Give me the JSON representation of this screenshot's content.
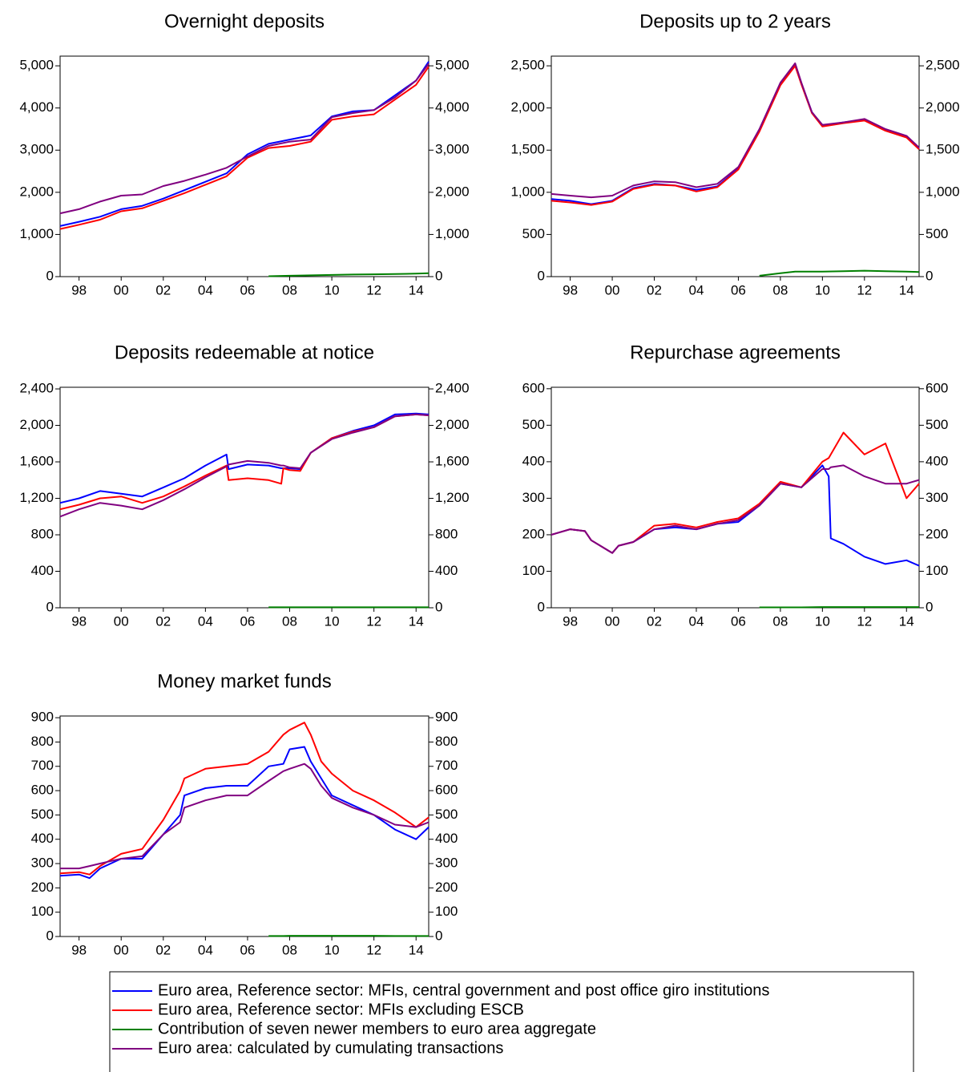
{
  "chart_data": [
    {
      "type": "line",
      "title": "Overnight deposits",
      "x": [
        1997.1,
        1998,
        1999,
        2000,
        2001,
        2002,
        2003,
        2004,
        2005,
        2006,
        2007,
        2008,
        2009,
        2010,
        2011,
        2012,
        2013,
        2014,
        2014.6
      ],
      "series": [
        {
          "name": "Euro area, Reference sector: MFIs, central government and post office giro institutions",
          "color": "#0000ff",
          "values": [
            1200,
            1300,
            1420,
            1600,
            1680,
            1850,
            2050,
            2250,
            2450,
            2900,
            3150,
            3250,
            3350,
            3800,
            3920,
            3950,
            4300,
            4650,
            5100
          ]
        },
        {
          "name": "Euro area, Reference sector: MFIs excluding ESCB",
          "color": "#ff0000",
          "values": [
            1130,
            1230,
            1350,
            1550,
            1620,
            1800,
            1980,
            2180,
            2380,
            2820,
            3050,
            3100,
            3200,
            3720,
            3800,
            3850,
            4200,
            4550,
            4980
          ]
        },
        {
          "name": "Contribution of seven newer members to euro area aggregate",
          "color": "#008000",
          "values": [
            null,
            null,
            null,
            null,
            null,
            null,
            null,
            null,
            null,
            null,
            10,
            20,
            30,
            40,
            50,
            55,
            60,
            70,
            80
          ]
        },
        {
          "name": "Euro area: calculated by cumulating transactions",
          "color": "#800080",
          "values": [
            1500,
            1600,
            1780,
            1920,
            1950,
            2150,
            2270,
            2420,
            2580,
            2850,
            3100,
            3200,
            3250,
            3780,
            3880,
            3950,
            4250,
            4650,
            5050
          ]
        }
      ],
      "xlim": [
        1997.1,
        2014.6
      ],
      "xticks": [
        {
          "value": 1998,
          "label": "98"
        },
        {
          "value": 2000,
          "label": "00"
        },
        {
          "value": 2002,
          "label": "02"
        },
        {
          "value": 2004,
          "label": "04"
        },
        {
          "value": 2006,
          "label": "06"
        },
        {
          "value": 2008,
          "label": "08"
        },
        {
          "value": 2010,
          "label": "10"
        },
        {
          "value": 2012,
          "label": "12"
        },
        {
          "value": 2014,
          "label": "14"
        }
      ],
      "ylim": [
        0,
        5230
      ],
      "yticks": [
        0,
        {
          "value": 1000,
          "label": "1,000"
        },
        {
          "value": 2000,
          "label": "2,000"
        },
        {
          "value": 3000,
          "label": "3,000"
        },
        {
          "value": 4000,
          "label": "4,000"
        },
        {
          "value": 5000,
          "label": "5,000"
        }
      ]
    },
    {
      "type": "line",
      "title": "Deposits up to 2 years",
      "x": [
        1997.1,
        1998,
        1999,
        2000,
        2001,
        2002,
        2003,
        2004,
        2005,
        2006,
        2007,
        2008,
        2008.7,
        2009,
        2009.5,
        2010,
        2011,
        2012,
        2013,
        2014,
        2014.6
      ],
      "series": [
        {
          "name": "Euro area, Reference sector: MFIs, central government and post office giro institutions",
          "color": "#0000ff",
          "values": [
            920,
            900,
            860,
            900,
            1050,
            1100,
            1080,
            1030,
            1070,
            1280,
            1730,
            2280,
            2510,
            2290,
            1950,
            1790,
            1830,
            1860,
            1740,
            1660,
            1520
          ]
        },
        {
          "name": "Euro area, Reference sector: MFIs excluding ESCB",
          "color": "#ff0000",
          "values": [
            900,
            880,
            850,
            890,
            1040,
            1090,
            1080,
            1010,
            1060,
            1270,
            1720,
            2270,
            2500,
            2280,
            1940,
            1780,
            1820,
            1850,
            1730,
            1650,
            1510
          ]
        },
        {
          "name": "Contribution of seven newer members to euro area aggregate",
          "color": "#008000",
          "values": [
            null,
            null,
            null,
            null,
            null,
            null,
            null,
            null,
            null,
            null,
            10,
            40,
            60,
            60,
            60,
            60,
            65,
            70,
            65,
            60,
            55
          ]
        },
        {
          "name": "Euro area: calculated by cumulating transactions",
          "color": "#800080",
          "values": [
            980,
            960,
            940,
            960,
            1080,
            1130,
            1120,
            1060,
            1100,
            1300,
            1750,
            2300,
            2530,
            2300,
            1950,
            1800,
            1830,
            1870,
            1750,
            1670,
            1530
          ]
        }
      ],
      "xlim": [
        1997.1,
        2014.6
      ],
      "xticks": [
        {
          "value": 1998,
          "label": "98"
        },
        {
          "value": 2000,
          "label": "00"
        },
        {
          "value": 2002,
          "label": "02"
        },
        {
          "value": 2004,
          "label": "04"
        },
        {
          "value": 2006,
          "label": "06"
        },
        {
          "value": 2008,
          "label": "08"
        },
        {
          "value": 2010,
          "label": "10"
        },
        {
          "value": 2012,
          "label": "12"
        },
        {
          "value": 2014,
          "label": "14"
        }
      ],
      "ylim": [
        0,
        2615
      ],
      "yticks": [
        0,
        500,
        {
          "value": 1000,
          "label": "1,000"
        },
        {
          "value": 1500,
          "label": "1,500"
        },
        {
          "value": 2000,
          "label": "2,000"
        },
        {
          "value": 2500,
          "label": "2,500"
        }
      ]
    },
    {
      "type": "line",
      "title": "Deposits redeemable at notice",
      "x": [
        1997.1,
        1998,
        1999,
        2000,
        2001,
        2002,
        2003,
        2004,
        2005,
        2005.1,
        2006,
        2007,
        2007.6,
        2007.7,
        2008,
        2008.5,
        2009,
        2010,
        2011,
        2012,
        2013,
        2014,
        2014.6
      ],
      "series": [
        {
          "name": "Euro area, Reference sector: MFIs, central government and post office giro institutions",
          "color": "#0000ff",
          "values": [
            1150,
            1200,
            1280,
            1250,
            1220,
            1320,
            1420,
            1560,
            1680,
            1520,
            1570,
            1560,
            1530,
            1530,
            1530,
            1520,
            1700,
            1860,
            1940,
            2000,
            2120,
            2130,
            2120
          ]
        },
        {
          "name": "Euro area, Reference sector: MFIs excluding ESCB",
          "color": "#ff0000",
          "values": [
            1080,
            1130,
            1200,
            1220,
            1150,
            1220,
            1330,
            1450,
            1560,
            1400,
            1420,
            1400,
            1360,
            1530,
            1510,
            1500,
            1700,
            1860,
            1930,
            1980,
            2100,
            2120,
            2110
          ]
        },
        {
          "name": "Contribution of seven newer members to euro area aggregate",
          "color": "#008000",
          "values": [
            null,
            null,
            null,
            null,
            null,
            null,
            null,
            null,
            null,
            null,
            null,
            5,
            5,
            5,
            5,
            5,
            5,
            5,
            5,
            5,
            5,
            5,
            5
          ]
        },
        {
          "name": "Euro area: calculated by cumulating transactions",
          "color": "#800080",
          "values": [
            1000,
            1080,
            1150,
            1120,
            1080,
            1180,
            1300,
            1430,
            1550,
            1570,
            1610,
            1590,
            1560,
            1560,
            1540,
            1530,
            1700,
            1850,
            1920,
            1980,
            2100,
            2120,
            2110
          ]
        }
      ],
      "xlim": [
        1997.1,
        2014.6
      ],
      "xticks": [
        {
          "value": 1998,
          "label": "98"
        },
        {
          "value": 2000,
          "label": "00"
        },
        {
          "value": 2002,
          "label": "02"
        },
        {
          "value": 2004,
          "label": "04"
        },
        {
          "value": 2006,
          "label": "06"
        },
        {
          "value": 2008,
          "label": "08"
        },
        {
          "value": 2010,
          "label": "10"
        },
        {
          "value": 2012,
          "label": "12"
        },
        {
          "value": 2014,
          "label": "14"
        }
      ],
      "ylim": [
        0,
        2418
      ],
      "yticks": [
        0,
        400,
        800,
        {
          "value": 1200,
          "label": "1,200"
        },
        {
          "value": 1600,
          "label": "1,600"
        },
        {
          "value": 2000,
          "label": "2,000"
        },
        {
          "value": 2400,
          "label": "2,400"
        }
      ]
    },
    {
      "type": "line",
      "title": "Repurchase agreements",
      "x": [
        1997.1,
        1998,
        1998.7,
        1999,
        2000,
        2000.3,
        2001,
        2002,
        2003,
        2004,
        2005,
        2006,
        2007,
        2008,
        2009,
        2010,
        2010.3,
        2010.4,
        2011,
        2012,
        2013,
        2014,
        2014.6
      ],
      "series": [
        {
          "name": "Euro area, Reference sector: MFIs, central government and post office giro institutions",
          "color": "#0000ff",
          "values": [
            200,
            215,
            210,
            185,
            150,
            170,
            180,
            215,
            220,
            215,
            230,
            235,
            280,
            340,
            330,
            390,
            360,
            190,
            175,
            140,
            120,
            130,
            115
          ]
        },
        {
          "name": "Euro area, Reference sector: MFIs excluding ESCB",
          "color": "#ff0000",
          "values": [
            200,
            215,
            210,
            185,
            150,
            170,
            180,
            225,
            230,
            220,
            235,
            245,
            285,
            345,
            330,
            400,
            410,
            420,
            480,
            420,
            450,
            300,
            340
          ]
        },
        {
          "name": "Contribution of seven newer members to euro area aggregate",
          "color": "#008000",
          "values": [
            null,
            null,
            null,
            null,
            null,
            null,
            null,
            null,
            null,
            null,
            null,
            null,
            1,
            1,
            1,
            2,
            2,
            2,
            2,
            2,
            2,
            2,
            2
          ]
        },
        {
          "name": "Euro area: calculated by cumulating transactions",
          "color": "#800080",
          "values": [
            200,
            215,
            210,
            185,
            150,
            170,
            180,
            215,
            225,
            215,
            230,
            240,
            280,
            340,
            330,
            380,
            380,
            385,
            390,
            360,
            340,
            340,
            350
          ]
        }
      ],
      "xlim": [
        1997.1,
        2014.6
      ],
      "xticks": [
        {
          "value": 1998,
          "label": "98"
        },
        {
          "value": 2000,
          "label": "00"
        },
        {
          "value": 2002,
          "label": "02"
        },
        {
          "value": 2004,
          "label": "04"
        },
        {
          "value": 2006,
          "label": "06"
        },
        {
          "value": 2008,
          "label": "08"
        },
        {
          "value": 2010,
          "label": "10"
        },
        {
          "value": 2012,
          "label": "12"
        },
        {
          "value": 2014,
          "label": "14"
        }
      ],
      "ylim": [
        0,
        604
      ],
      "yticks": [
        0,
        100,
        200,
        300,
        400,
        500,
        600
      ]
    },
    {
      "type": "line",
      "title": "Money market funds",
      "x": [
        1997.1,
        1998,
        1998.5,
        1999,
        2000,
        2001,
        2002,
        2002.8,
        2003,
        2004,
        2005,
        2006,
        2007,
        2007.7,
        2008,
        2008.7,
        2009,
        2009.5,
        2010,
        2011,
        2012,
        2013,
        2014,
        2014.6
      ],
      "series": [
        {
          "name": "Euro area, Reference sector: MFIs, central government and post office giro institutions",
          "color": "#0000ff",
          "values": [
            250,
            255,
            240,
            280,
            320,
            320,
            420,
            500,
            580,
            610,
            620,
            620,
            700,
            710,
            770,
            780,
            720,
            650,
            580,
            540,
            500,
            440,
            400,
            450
          ]
        },
        {
          "name": "Euro area, Reference sector: MFIs excluding ESCB",
          "color": "#ff0000",
          "values": [
            260,
            265,
            255,
            290,
            340,
            360,
            480,
            600,
            650,
            690,
            700,
            710,
            760,
            830,
            850,
            880,
            830,
            720,
            670,
            600,
            560,
            510,
            450,
            490
          ]
        },
        {
          "name": "Contribution of seven newer members to euro area aggregate",
          "color": "#008000",
          "values": [
            null,
            null,
            null,
            null,
            null,
            null,
            null,
            null,
            null,
            null,
            null,
            null,
            2,
            2,
            3,
            3,
            3,
            3,
            3,
            3,
            3,
            2,
            2,
            2
          ]
        },
        {
          "name": "Euro area: calculated by cumulating transactions",
          "color": "#800080",
          "values": [
            280,
            280,
            290,
            300,
            320,
            330,
            420,
            470,
            530,
            560,
            580,
            580,
            640,
            680,
            690,
            710,
            690,
            620,
            570,
            530,
            500,
            460,
            450,
            470
          ]
        }
      ],
      "xlim": [
        1997.1,
        2014.6
      ],
      "xticks": [
        {
          "value": 1998,
          "label": "98"
        },
        {
          "value": 2000,
          "label": "00"
        },
        {
          "value": 2002,
          "label": "02"
        },
        {
          "value": 2004,
          "label": "04"
        },
        {
          "value": 2006,
          "label": "06"
        },
        {
          "value": 2008,
          "label": "08"
        },
        {
          "value": 2010,
          "label": "10"
        },
        {
          "value": 2012,
          "label": "12"
        },
        {
          "value": 2014,
          "label": "14"
        }
      ],
      "ylim": [
        0,
        907
      ],
      "yticks": [
        0,
        100,
        200,
        300,
        400,
        500,
        600,
        700,
        800,
        900
      ]
    }
  ]
}
